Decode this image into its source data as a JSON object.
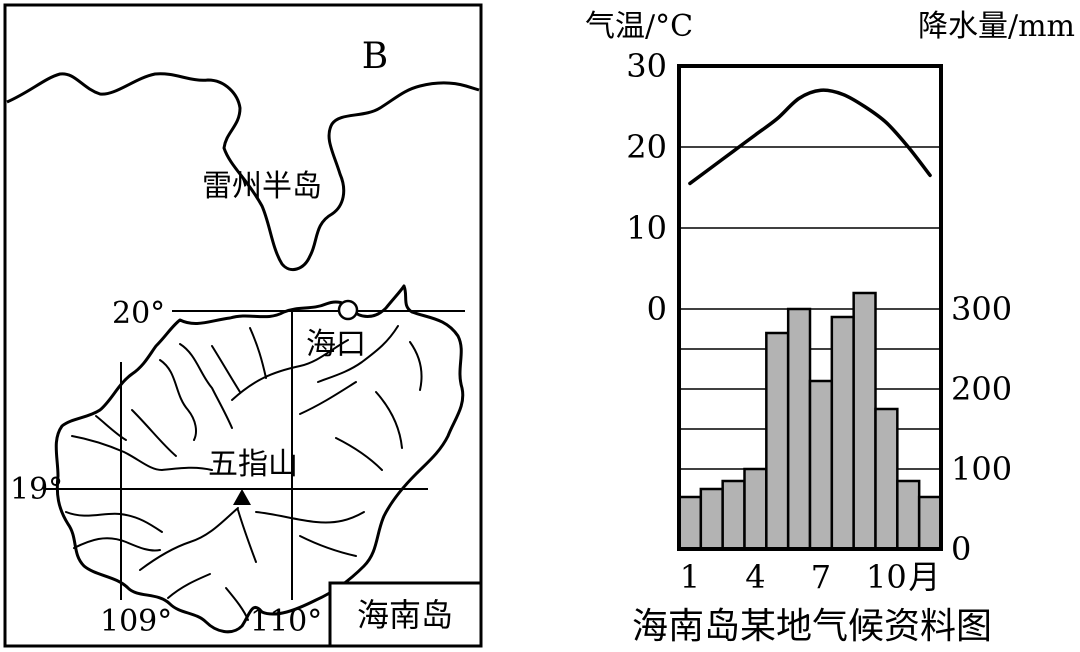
{
  "map": {
    "panel_letter": "B",
    "legend_box_label": "海南岛",
    "labels": {
      "peninsula": "雷州半岛",
      "city": "海口",
      "mountain": "五指山"
    },
    "latitudes": [
      "20°",
      "19°"
    ],
    "longitudes": [
      "109°",
      "110°"
    ]
  },
  "chart_data": {
    "type": "bar",
    "title": "海南岛某地气候资料图",
    "ylabel_left": "气温/°C",
    "ylabel_right": "降水量/mm",
    "x_suffix": "月",
    "x_tick_labels": [
      "1",
      "4",
      "7",
      "10"
    ],
    "x_tick_months": [
      1,
      4,
      7,
      10
    ],
    "temp_ticks": [
      "30",
      "20",
      "10",
      "0"
    ],
    "precip_ticks": [
      "300",
      "200",
      "100",
      "0"
    ],
    "temp_ylim": [
      0,
      30
    ],
    "precip_ylim": [
      0,
      300
    ],
    "grid": true,
    "categories": [
      1,
      2,
      3,
      4,
      5,
      6,
      7,
      8,
      9,
      10,
      11,
      12
    ],
    "series": [
      {
        "kind": "bar",
        "axis": "right",
        "values": [
          65,
          75,
          85,
          100,
          270,
          300,
          210,
          290,
          320,
          175,
          85,
          65
        ]
      },
      {
        "kind": "line",
        "axis": "left",
        "values": [
          15.5,
          17.5,
          19.5,
          21.5,
          23.5,
          26,
          27,
          26.5,
          25,
          23,
          20,
          16.5
        ]
      }
    ],
    "colors": {
      "bar": "#b3b3b3",
      "line": "#000000"
    }
  }
}
